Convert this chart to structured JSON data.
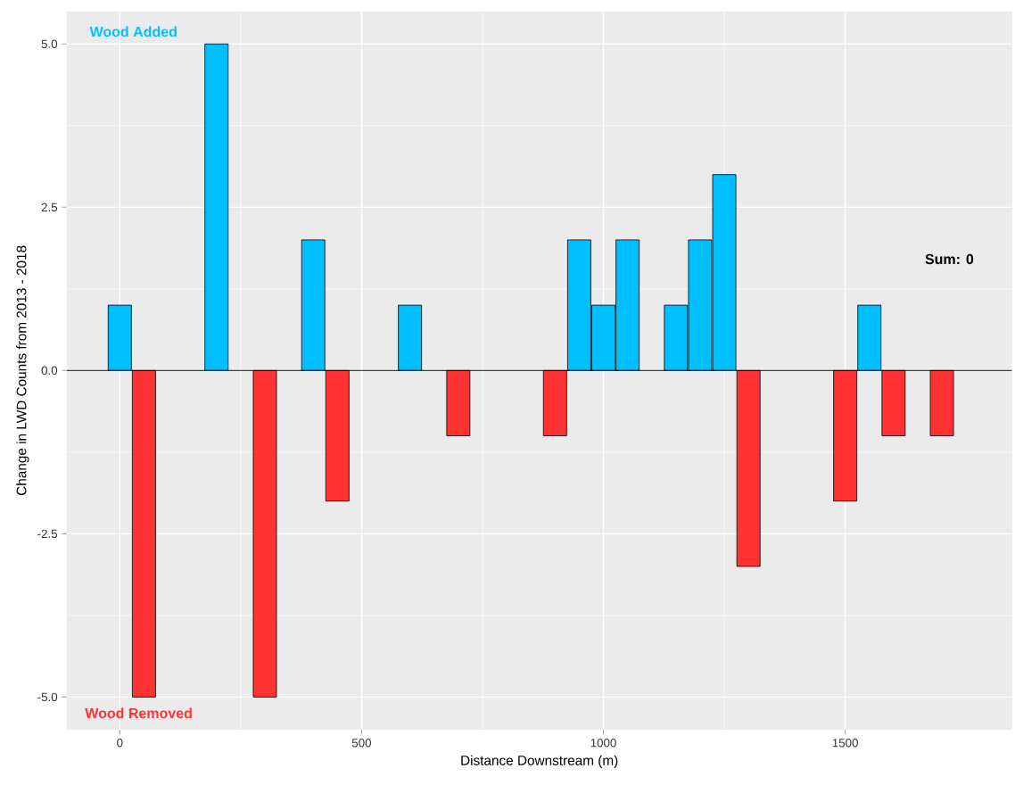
{
  "chart_data": {
    "type": "bar",
    "xlabel": "Distance Downstream (m)",
    "ylabel": "Change in LWD Counts from 2013 - 2018",
    "series": [
      {
        "color": "#00bfff",
        "x": [
          0,
          200,
          400,
          600,
          950,
          1000,
          1050,
          1150,
          1200,
          1250,
          1550
        ],
        "values": [
          1,
          5,
          2,
          1,
          2,
          1,
          2,
          1,
          2,
          3,
          1
        ]
      },
      {
        "color": "#ff3333",
        "x": [
          50,
          300,
          450,
          700,
          900,
          1300,
          1500,
          1600,
          1700
        ],
        "values": [
          -5,
          -5,
          -2,
          -1,
          -1,
          -3,
          -2,
          -1,
          -1
        ]
      }
    ],
    "xlim": [
      -110,
      1845
    ],
    "ylim": [
      -5.5,
      5.5
    ],
    "xticks": [
      0,
      500,
      1000,
      1500
    ],
    "yticks": [
      {
        "value": -5,
        "label": "-5.0"
      },
      {
        "value": -2.5,
        "label": "-2.5"
      },
      {
        "value": 0,
        "label": "0.0"
      },
      {
        "value": 2.5,
        "label": "2.5"
      },
      {
        "value": 5,
        "label": "5.0"
      }
    ],
    "ref_lines": [
      {
        "axis": "y",
        "value": 0,
        "color": "#000000"
      }
    ],
    "annotations": [
      "Wood Added",
      "Wood Removed",
      "Sum:  0"
    ],
    "grid": true
  }
}
